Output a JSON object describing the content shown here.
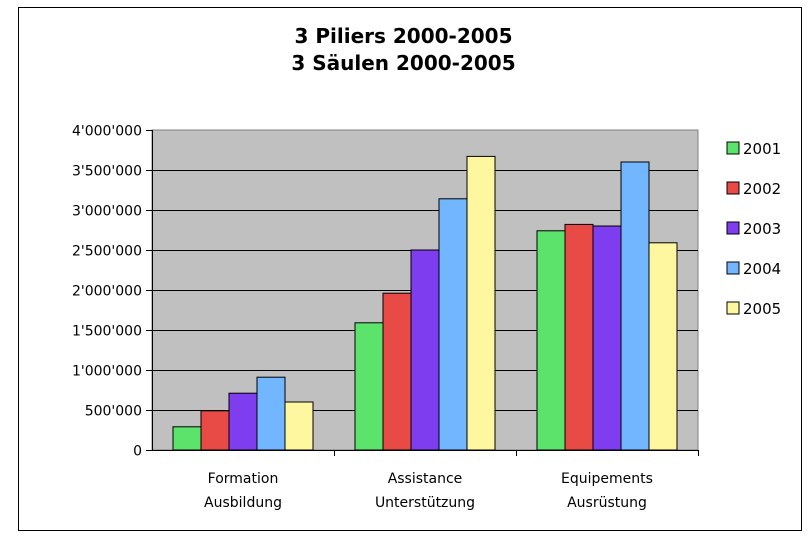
{
  "chart_data": {
    "type": "bar",
    "title_lines": [
      "3 Piliers 2000-2005",
      "3 Säulen 2000-2005"
    ],
    "categories": [
      [
        "Formation",
        "Ausbildung"
      ],
      [
        "Assistance",
        "Unterstützung"
      ],
      [
        "Equipements",
        "Ausrüstung"
      ]
    ],
    "series": [
      {
        "name": "2001",
        "color": "#5be36b",
        "values": [
          290000,
          1590000,
          2740000
        ]
      },
      {
        "name": "2002",
        "color": "#e84a45",
        "values": [
          490000,
          1960000,
          2820000
        ]
      },
      {
        "name": "2003",
        "color": "#7f3df0",
        "values": [
          710000,
          2500000,
          2800000
        ]
      },
      {
        "name": "2004",
        "color": "#72b6ff",
        "values": [
          910000,
          3140000,
          3600000
        ]
      },
      {
        "name": "2005",
        "color": "#fff6a0",
        "values": [
          600000,
          3670000,
          2590000
        ]
      }
    ],
    "ylim": [
      0,
      4000000
    ],
    "y_ticks": [
      "0",
      "500'000",
      "1'000'000",
      "1'500'000",
      "2'000'000",
      "2'500'000",
      "3'000'000",
      "3'500'000",
      "4'000'000"
    ],
    "plot_background": "#c0c0c0",
    "legend_position": "right",
    "xlabel": "",
    "ylabel": ""
  }
}
